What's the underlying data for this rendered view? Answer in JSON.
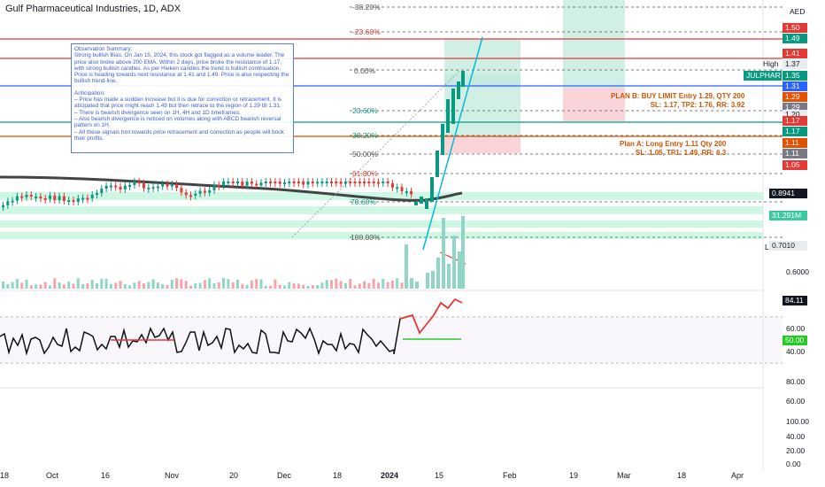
{
  "header": {
    "title": "Gulf Pharmaceutical Industries, 1D, ADX"
  },
  "currency": "AED",
  "note": {
    "summary": "Observation Summary:\nStrong bullish Bias. On Jan 15, 2024, this stock got flagged as a volume leader. The price also broke above 200 EMA. Within 2 days, price broke the resistance of 1.17, with strong bullish candles. As per Hieken candles the trend is bullish continuation. Price is heading towards next resistance at 1.41 and 1.49. Price is also respecting the bullish trend-line.",
    "anticipation": "Anticipation:\n– Price has made a sudden increase but it is due for correction or retracement. It is aticipated that price might reach 1.49 but then retrace to the region of 1.29 till 1.31.\n– There is bearish divergence seen on 1H, 4H and 1D timeframes.\n– Also bearish divergence is noticed on volumes along with ABCD bearish reversal pattern on 1H.\n– All these signals hint towards price retracement and correction as people will book their profits."
  },
  "plans": {
    "plan_b_line1": "PLAN B: BUY LIMIT Entry 1.29, QTY 200",
    "plan_b_line2": "SL: 1.17, TP2: 1.76, RR: 3.92",
    "plan_a_line1": "Plan A: Long Entry 1.11 Qty 200",
    "plan_a_line2": "SL: 1.05, TP1: 1.49, RR: 6.3"
  },
  "fib_levels": [
    {
      "label": "-38.20%"
    },
    {
      "label": "-23.60%"
    },
    {
      "label": "0.00%"
    },
    {
      "label": "23.60%"
    },
    {
      "label": "38.20%"
    },
    {
      "label": "50.00%"
    },
    {
      "label": "61.80%"
    },
    {
      "label": "78.60%"
    },
    {
      "label": "100.00%"
    }
  ],
  "price_tags": [
    {
      "text": "1.50",
      "color": "#e53935"
    },
    {
      "text": "1.49",
      "color": "#089981"
    },
    {
      "text": "1.41",
      "color": "#e53935"
    },
    {
      "text": "1.37",
      "color": "#e9ecef"
    },
    {
      "text": "JULPHAR",
      "color": "#089981"
    },
    {
      "text": "1.35",
      "color": "#089981"
    },
    {
      "text": "1.31",
      "color": "#2962ff"
    },
    {
      "text": "1.29",
      "color": "#e65100"
    },
    {
      "text": "1.29",
      "color": "#787b86"
    },
    {
      "text": "1.20",
      "color": "#e9ecef"
    },
    {
      "text": "1.17",
      "color": "#e53935"
    },
    {
      "text": "1.17",
      "color": "#089981"
    },
    {
      "text": "1.11",
      "color": "#e65100"
    },
    {
      "text": "1.11",
      "color": "#787b86"
    },
    {
      "text": "1.05",
      "color": "#e53935"
    },
    {
      "text": "0.8941",
      "color": "#131722"
    },
    {
      "text": "31.291M",
      "color": "#3cc8a0"
    },
    {
      "text": "0.7010",
      "color": "#e9ecef"
    },
    {
      "text": "84.11",
      "color": "#131722"
    },
    {
      "text": "50.00",
      "color": "#22cc22"
    }
  ],
  "labels": {
    "high": "High",
    "low": "Low"
  },
  "y_axis_main": [
    "0.6000"
  ],
  "y_axis_rsi": [
    "60.00",
    "40.00"
  ],
  "y_axis_bottom": [
    "80.00",
    "60.00",
    "40.00",
    "20.00",
    "100.00",
    "0.00"
  ],
  "x_axis": [
    "18",
    "Oct",
    "16",
    "Nov",
    "20",
    "Dec",
    "18",
    "2024",
    "15",
    "Feb",
    "19",
    "Mar",
    "18",
    "Apr"
  ],
  "chart_data": {
    "type": "candlestick",
    "title": "Gulf Pharmaceutical Industries, 1D, ADX",
    "ylabel": "AED",
    "last_close": 1.35,
    "period_high": 1.37,
    "period_low": 0.701,
    "ema_200_last": 0.8941,
    "volume_last": "31.291M",
    "rsi_last": 84.11,
    "rsi_reference": 50.0,
    "resistances": [
      1.41,
      1.49,
      1.5
    ],
    "supports": [
      1.17,
      1.05
    ],
    "entries": [
      1.29,
      1.11
    ]
  }
}
